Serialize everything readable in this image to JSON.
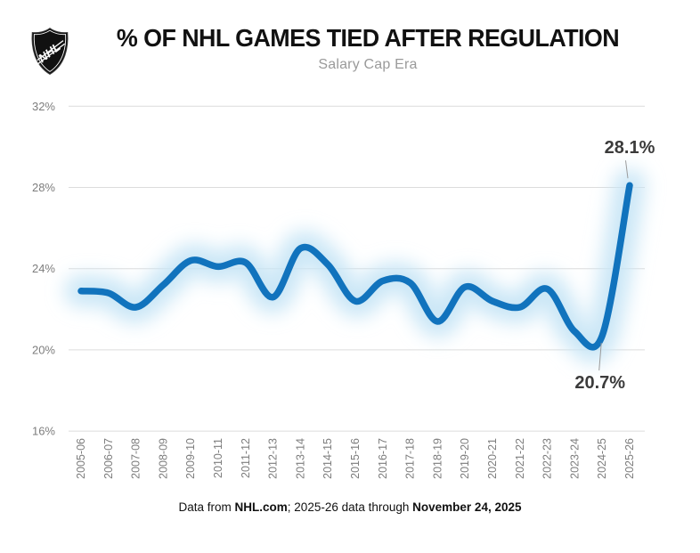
{
  "chart_data": {
    "type": "line",
    "title": "% OF NHL GAMES TIED AFTER REGULATION",
    "subtitle": "Salary Cap Era",
    "categories": [
      "2005-06",
      "2006-07",
      "2007-08",
      "2008-09",
      "2009-10",
      "2010-11",
      "2011-12",
      "2012-13",
      "2013-14",
      "2014-15",
      "2015-16",
      "2016-17",
      "2017-18",
      "2018-19",
      "2019-20",
      "2020-21",
      "2021-22",
      "2022-23",
      "2023-24",
      "2024-25",
      "2025-26"
    ],
    "values": [
      22.9,
      22.8,
      22.1,
      23.2,
      24.4,
      24.1,
      24.3,
      22.6,
      25.0,
      24.2,
      22.4,
      23.4,
      23.3,
      21.4,
      23.1,
      22.4,
      22.1,
      23.0,
      20.9,
      20.7,
      28.1
    ],
    "series_name": "Percent of NHL games tied after regulation",
    "y_ticks": [
      {
        "label": "32%",
        "value": 32
      },
      {
        "label": "28%",
        "value": 28
      },
      {
        "label": "24%",
        "value": 24
      },
      {
        "label": "20%",
        "value": 20
      },
      {
        "label": "16%",
        "value": 16
      }
    ],
    "ylim": [
      16,
      32
    ],
    "grid": "horizontal",
    "legend": "none",
    "line_color": "#1173bd",
    "glow_color": "#c6e6f6",
    "annotations": [
      {
        "label": "28.1%",
        "category": "2025-26",
        "value": 28.1,
        "position": "above"
      },
      {
        "label": "20.7%",
        "category": "2024-25",
        "value": 20.7,
        "position": "below"
      }
    ]
  },
  "logo": {
    "text": "NHL"
  },
  "footer": {
    "prefix": "Data from ",
    "source": "NHL.com",
    "middle": "; 2025-26 data through ",
    "date": "November 24, 2025"
  }
}
